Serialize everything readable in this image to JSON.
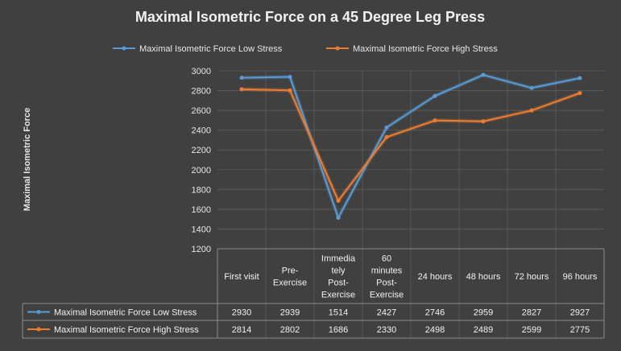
{
  "chart_data": {
    "type": "line",
    "title": "Maximal Isometric Force on a 45 Degree Leg Press",
    "ylabel": "Maximal Isometric Force",
    "xlabel": "",
    "ylim": [
      1200,
      3000
    ],
    "yticks": [
      1200,
      1400,
      1600,
      1800,
      2000,
      2200,
      2400,
      2600,
      2800,
      3000
    ],
    "categories": [
      [
        "First visit"
      ],
      [
        "Pre-",
        "Exercise"
      ],
      [
        "Immedia",
        "tely",
        "Post-",
        "Exercise"
      ],
      [
        "60",
        "minutes",
        "Post-",
        "Exercise"
      ],
      [
        "24 hours"
      ],
      [
        "48 hours"
      ],
      [
        "72 hours"
      ],
      [
        "96 hours"
      ]
    ],
    "series": [
      {
        "name": "Maximal Isometric Force Low Stress",
        "color": "#5b9bd5",
        "values": [
          2930,
          2939,
          1514,
          2427,
          2746,
          2959,
          2827,
          2927
        ]
      },
      {
        "name": "Maximal Isometric Force High Stress",
        "color": "#ed7d31",
        "values": [
          2814,
          2802,
          1686,
          2330,
          2498,
          2489,
          2599,
          2775
        ]
      }
    ],
    "grid": true,
    "legend": "top",
    "data_table": true
  }
}
